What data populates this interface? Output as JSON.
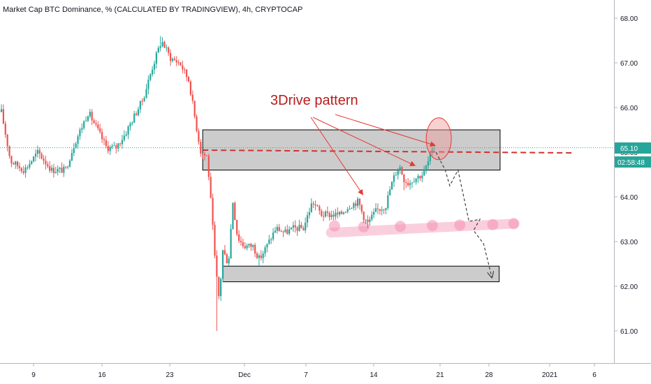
{
  "chart_data": {
    "type": "candlestick",
    "title": "Market Cap BTC Dominance, % (CALCULATED BY TRADINGVIEW), 4h, CRYPTOCAP",
    "y_axis": {
      "ticks": [
        "68.00",
        "67.00",
        "66.00",
        "65.00",
        "64.00",
        "63.00",
        "62.00",
        "61.00"
      ],
      "ylim": [
        60.5,
        68.3
      ]
    },
    "x_axis": {
      "ticks": [
        "9",
        "16",
        "23",
        "Dec",
        "7",
        "14",
        "21",
        "28",
        "2021",
        "6"
      ]
    },
    "price_badge": {
      "value": "65.10",
      "countdown": "02:58:48"
    },
    "annotation": {
      "text": "3Drive pattern"
    },
    "path_keys": [
      {
        "d": 0.0,
        "v": 65.9
      },
      {
        "d": 1.0,
        "v": 64.8
      },
      {
        "d": 2.5,
        "v": 64.6
      },
      {
        "d": 4.0,
        "v": 65.0
      },
      {
        "d": 5.5,
        "v": 64.6
      },
      {
        "d": 7.0,
        "v": 64.6
      },
      {
        "d": 8.0,
        "v": 65.2
      },
      {
        "d": 9.5,
        "v": 65.9
      },
      {
        "d": 10.5,
        "v": 65.5
      },
      {
        "d": 11.5,
        "v": 65.1
      },
      {
        "d": 12.5,
        "v": 65.1
      },
      {
        "d": 13.5,
        "v": 65.4
      },
      {
        "d": 14.5,
        "v": 65.8
      },
      {
        "d": 15.5,
        "v": 66.2
      },
      {
        "d": 16.5,
        "v": 66.9
      },
      {
        "d": 17.5,
        "v": 67.5
      },
      {
        "d": 18.5,
        "v": 67.1
      },
      {
        "d": 19.5,
        "v": 67.0
      },
      {
        "d": 20.5,
        "v": 66.6
      },
      {
        "d": 21.2,
        "v": 65.7
      },
      {
        "d": 21.8,
        "v": 65.0
      },
      {
        "d": 22.5,
        "v": 64.9
      },
      {
        "d": 23.0,
        "v": 63.6
      },
      {
        "d": 23.4,
        "v": 62.4
      },
      {
        "d": 23.8,
        "v": 61.7
      },
      {
        "d": 24.2,
        "v": 62.8
      },
      {
        "d": 24.8,
        "v": 62.5
      },
      {
        "d": 25.3,
        "v": 63.9
      },
      {
        "d": 25.8,
        "v": 63.1
      },
      {
        "d": 26.5,
        "v": 62.9
      },
      {
        "d": 27.5,
        "v": 62.9
      },
      {
        "d": 28.2,
        "v": 62.6
      },
      {
        "d": 29.0,
        "v": 62.9
      },
      {
        "d": 30.0,
        "v": 63.3
      },
      {
        "d": 31.0,
        "v": 63.2
      },
      {
        "d": 32.0,
        "v": 63.3
      },
      {
        "d": 33.0,
        "v": 63.3
      },
      {
        "d": 34.0,
        "v": 63.9
      },
      {
        "d": 35.0,
        "v": 63.6
      },
      {
        "d": 36.0,
        "v": 63.6
      },
      {
        "d": 37.0,
        "v": 63.6
      },
      {
        "d": 38.0,
        "v": 63.8
      },
      {
        "d": 39.0,
        "v": 63.9
      },
      {
        "d": 39.5,
        "v": 63.6
      },
      {
        "d": 40.0,
        "v": 63.4
      },
      {
        "d": 41.0,
        "v": 63.7
      },
      {
        "d": 42.0,
        "v": 63.8
      },
      {
        "d": 42.5,
        "v": 64.2
      },
      {
        "d": 43.0,
        "v": 64.5
      },
      {
        "d": 43.5,
        "v": 64.7
      },
      {
        "d": 44.0,
        "v": 64.4
      },
      {
        "d": 44.5,
        "v": 64.3
      },
      {
        "d": 45.0,
        "v": 64.4
      },
      {
        "d": 46.0,
        "v": 64.5
      },
      {
        "d": 46.5,
        "v": 64.7
      },
      {
        "d": 47.0,
        "v": 65.0
      },
      {
        "d": 47.5,
        "v": 65.1
      }
    ],
    "extremes": [
      {
        "d": 17.4,
        "v": 67.6
      },
      {
        "d": 23.6,
        "v": 61.0
      },
      {
        "d": 28.2,
        "v": 62.45
      },
      {
        "d": 40.0,
        "v": 63.3
      },
      {
        "d": 44.0,
        "v": 64.15
      }
    ],
    "zones": [
      {
        "d1": 22.0,
        "d2": 54.5,
        "v1": 65.5,
        "v2": 64.6
      },
      {
        "d1": 24.2,
        "d2": 54.4,
        "v1": 62.45,
        "v2": 62.1
      }
    ],
    "level": 65.0,
    "current_price": 65.1,
    "projection": [
      {
        "d": 47.5,
        "v": 65.0
      },
      {
        "d": 48.5,
        "v": 64.6
      },
      {
        "d": 49.0,
        "v": 64.25
      },
      {
        "d": 49.9,
        "v": 64.6
      },
      {
        "d": 51.1,
        "v": 63.45
      },
      {
        "d": 52.3,
        "v": 63.5
      },
      {
        "d": 51.6,
        "v": 63.25
      },
      {
        "d": 52.7,
        "v": 62.95
      },
      {
        "d": 53.6,
        "v": 62.2
      }
    ],
    "bead_track": {
      "d1": 36.0,
      "v1": 63.2,
      "d2": 56.0,
      "v2": 63.4
    },
    "bead_points": [
      {
        "d": 36.4,
        "v": 63.35
      },
      {
        "d": 39.6,
        "v": 63.33
      },
      {
        "d": 43.6,
        "v": 63.34
      },
      {
        "d": 47.1,
        "v": 63.36
      },
      {
        "d": 50.1,
        "v": 63.37
      },
      {
        "d": 53.7,
        "v": 63.38
      },
      {
        "d": 56.0,
        "v": 63.4
      }
    ],
    "highlight_ellipse": {
      "d": 47.8,
      "v": 65.3
    },
    "arrow_targets": [
      {
        "d": 39.5,
        "v": 64.05
      },
      {
        "d": 45.2,
        "v": 64.7
      },
      {
        "d": 47.4,
        "v": 65.15
      }
    ],
    "colors": {
      "up": "#26a69a",
      "down": "#ef5350",
      "level": "#d32f2f",
      "zone": "#cccccc",
      "annotation": "#b71c1c",
      "badge_price": "#26a69a",
      "badge_timer": "#26a69a",
      "projection": "#424242",
      "beads": "#f8bbd0"
    }
  }
}
